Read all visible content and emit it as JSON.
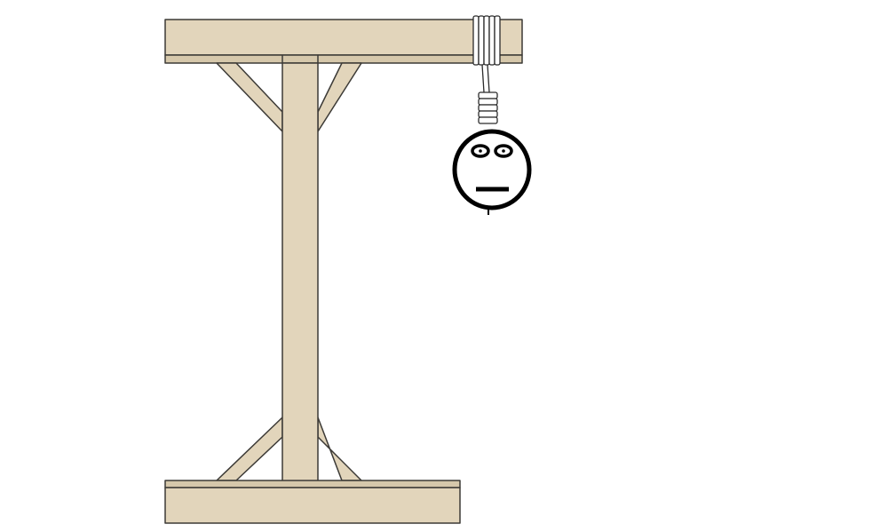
{
  "game": {
    "wrong_guesses_shown": 1,
    "parts_drawn": [
      "head"
    ]
  },
  "colors": {
    "background": "#ffffff",
    "wood_fill": "#e2d5bb",
    "wood_stroke": "#3c3a36",
    "rope_fill": "#ffffff",
    "rope_stroke": "#2b2b2b",
    "figure_stroke": "#000000"
  }
}
